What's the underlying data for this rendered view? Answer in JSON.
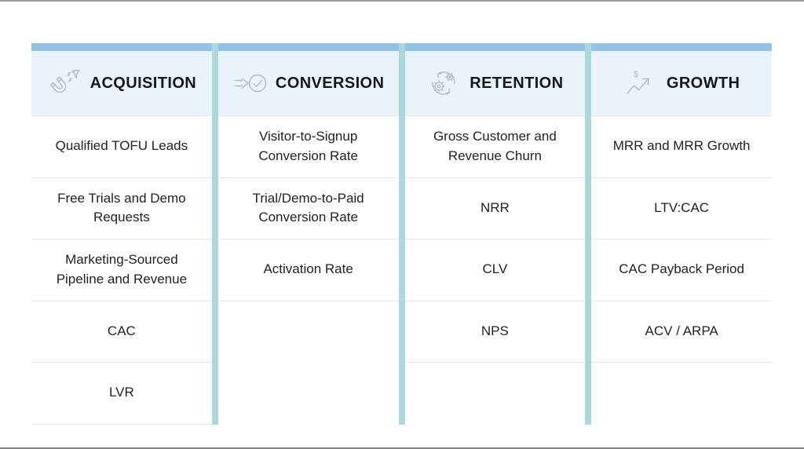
{
  "colors": {
    "top_bar_blue": "#90c3e6",
    "header_bg": "#eaf3fa",
    "divider_teal": "#acd8dc",
    "row_border": "#e0e8ea",
    "title_text": "#17181a",
    "body_text": "#202225",
    "icon_stroke": "#b3bac0"
  },
  "columns": [
    {
      "title": "ACQUISITION",
      "icon": "magnet-icon",
      "items": [
        "Qualified TOFU Leads",
        "Free Trials and Demo Requests",
        "Marketing-Sourced Pipeline and Revenue",
        "CAC",
        "LVR"
      ]
    },
    {
      "title": "CONVERSION",
      "icon": "arrow-check-icon",
      "items": [
        "Visitor-to-Signup Conversion Rate",
        "Trial/Demo-to-Paid Conversion Rate",
        "Activation Rate"
      ]
    },
    {
      "title": "RETENTION",
      "icon": "gears-cycle-icon",
      "items": [
        "Gross Customer and Revenue Churn",
        "NRR",
        "CLV",
        "NPS"
      ]
    },
    {
      "title": "GROWTH",
      "icon": "dollar-growth-icon",
      "items": [
        "MRR and MRR Growth",
        "LTV:CAC",
        "CAC Payback Period",
        "ACV / ARPA"
      ]
    }
  ]
}
